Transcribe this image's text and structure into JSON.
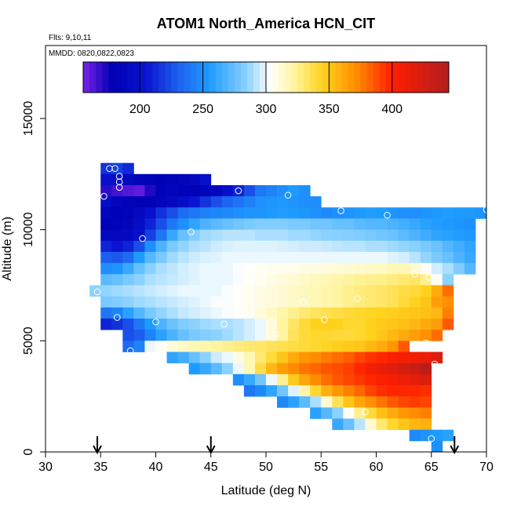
{
  "chart_data": {
    "type": "heatmap",
    "title": "ATOM1 North_America HCN_CIT",
    "flights_label": "Flts: 9,10,11",
    "date_label": "MMDD: 0820,0822,0823",
    "xlabel": "Latitude (deg N)",
    "ylabel": "Altitude (m)",
    "xlim": [
      30,
      70
    ],
    "ylim": [
      0,
      18500
    ],
    "xticks": [
      "30",
      "35",
      "40",
      "45",
      "50",
      "55",
      "60",
      "65",
      "70"
    ],
    "yticks": [
      "0",
      "5000",
      "10000",
      "15000"
    ],
    "colorbar": {
      "range": [
        155,
        445
      ],
      "ticks": [
        "200",
        "250",
        "300",
        "350",
        "400"
      ],
      "stops": [
        [
          155,
          "#7a22e8"
        ],
        [
          178,
          "#0000b4"
        ],
        [
          205,
          "#0a14d0"
        ],
        [
          232,
          "#1e64f0"
        ],
        [
          255,
          "#1e9bff"
        ],
        [
          285,
          "#8cd2ff"
        ],
        [
          303,
          "#ffffff"
        ],
        [
          322,
          "#fff5a0"
        ],
        [
          345,
          "#ffd21e"
        ],
        [
          372,
          "#ff8c00"
        ],
        [
          400,
          "#ff1e00"
        ],
        [
          445,
          "#b01e1e"
        ]
      ]
    },
    "cell_width_deg": 1.0,
    "cell_height_m": 500,
    "rows": [
      {
        "alt": 12750,
        "lat_start": 35,
        "values": [
          215,
          220,
          212
        ]
      },
      {
        "alt": 12250,
        "lat_start": 35,
        "values": [
          200,
          195,
          190,
          185,
          182,
          180,
          182,
          185,
          190,
          200
        ]
      },
      {
        "alt": 11750,
        "lat_start": 35,
        "values": [
          170,
          165,
          162,
          160,
          172,
          182,
          185,
          182,
          180,
          183,
          188,
          198,
          210,
          225,
          240,
          245,
          250,
          255,
          250
        ]
      },
      {
        "alt": 11250,
        "lat_start": 35,
        "values": [
          195,
          185,
          182,
          180,
          180,
          185,
          190,
          195,
          205,
          215,
          225,
          232,
          238,
          244,
          250,
          252,
          254,
          252,
          250,
          250
        ]
      },
      {
        "alt": 10750,
        "lat_start": 35,
        "values": [
          185,
          180,
          182,
          190,
          200,
          215,
          225,
          235,
          240,
          244,
          246,
          248,
          250,
          252,
          252,
          254,
          256,
          254,
          252,
          250,
          248,
          250,
          252,
          254,
          256,
          255,
          252,
          250,
          250,
          252,
          254,
          256,
          255,
          254,
          252
        ]
      },
      {
        "alt": 10250,
        "lat_start": 35,
        "values": [
          180,
          182,
          185,
          195,
          210,
          225,
          240,
          250,
          260,
          268,
          272,
          275,
          278,
          280,
          282,
          282,
          282,
          280,
          280,
          278,
          278,
          275,
          275,
          272,
          270,
          270,
          268,
          265,
          262,
          258,
          256,
          254,
          252,
          250
        ]
      },
      {
        "alt": 9750,
        "lat_start": 35,
        "values": [
          190,
          188,
          190,
          200,
          220,
          240,
          262,
          275,
          282,
          288,
          290,
          292,
          292,
          292,
          290,
          290,
          290,
          288,
          288,
          286,
          285,
          284,
          283,
          282,
          280,
          278,
          276,
          272,
          268,
          264,
          260,
          258,
          256,
          254
        ]
      },
      {
        "alt": 9250,
        "lat_start": 35,
        "values": [
          210,
          205,
          210,
          225,
          250,
          268,
          280,
          286,
          290,
          292,
          295,
          297,
          298,
          298,
          298,
          298,
          297,
          296,
          295,
          295,
          294,
          293,
          292,
          292,
          290,
          290,
          288,
          286,
          284,
          280,
          276,
          270,
          265,
          260
        ]
      },
      {
        "alt": 8750,
        "lat_start": 35,
        "values": [
          230,
          228,
          235,
          255,
          270,
          280,
          288,
          292,
          295,
          297,
          298,
          300,
          300,
          300,
          300,
          300,
          300,
          300,
          300,
          300,
          300,
          300,
          300,
          300,
          300,
          300,
          298,
          296,
          292,
          286,
          280,
          275,
          268,
          262
        ]
      },
      {
        "alt": 8250,
        "lat_start": 35,
        "values": [
          250,
          252,
          262,
          275,
          284,
          290,
          293,
          296,
          298,
          300,
          300,
          300,
          302,
          304,
          305,
          306,
          306,
          307,
          308,
          309,
          310,
          311,
          312,
          313,
          314,
          315,
          318,
          318,
          312,
          305,
          296,
          290,
          282,
          270
        ]
      },
      {
        "alt": 7750,
        "lat_start": 35,
        "values": [
          272,
          275,
          280,
          285,
          290,
          292,
          294,
          296,
          298,
          300,
          300,
          300,
          302,
          304,
          306,
          308,
          310,
          312,
          314,
          316,
          318,
          320,
          322,
          324,
          325,
          326,
          328,
          330,
          332,
          325,
          305,
          285
        ]
      },
      {
        "alt": 7250,
        "lat_start": 34,
        "values": [
          285,
          286,
          288,
          290,
          292,
          294,
          296,
          298,
          300,
          300,
          300,
          300,
          302,
          304,
          306,
          308,
          310,
          312,
          314,
          316,
          318,
          320,
          322,
          325,
          328,
          330,
          332,
          335,
          338,
          340,
          345,
          360,
          380
        ]
      },
      {
        "alt": 6750,
        "lat_start": 35,
        "values": [
          280,
          282,
          285,
          288,
          290,
          292,
          294,
          296,
          298,
          300,
          302,
          302,
          304,
          306,
          308,
          310,
          312,
          314,
          316,
          318,
          320,
          322,
          325,
          328,
          330,
          332,
          335,
          340,
          345,
          350,
          365,
          370
        ]
      },
      {
        "alt": 6250,
        "lat_start": 35,
        "values": [
          240,
          245,
          258,
          270,
          280,
          286,
          290,
          294,
          296,
          298,
          300,
          302,
          304,
          306,
          310,
          315,
          320,
          325,
          330,
          333,
          336,
          338,
          340,
          342,
          344,
          345,
          346,
          348,
          350,
          352,
          355,
          375
        ]
      },
      {
        "alt": 5750,
        "lat_start": 35,
        "values": [
          210,
          215,
          225,
          240,
          255,
          268,
          276,
          282,
          285,
          288,
          290,
          290,
          292,
          296,
          300,
          310,
          322,
          332,
          340,
          345,
          346,
          345,
          342,
          342,
          345,
          348,
          350,
          352,
          355,
          360,
          365,
          385
        ]
      },
      {
        "alt": 5250,
        "lat_start": 37,
        "values": [
          225,
          230,
          245,
          258,
          268,
          275,
          280,
          283,
          285,
          288,
          292,
          296,
          300,
          310,
          322,
          334,
          340,
          342,
          342,
          340,
          340,
          342,
          345,
          350,
          355,
          360,
          365,
          370,
          380
        ]
      },
      {
        "alt": 4750,
        "lat_start": 37,
        "values": [
          235,
          245,
          300,
          305,
          310,
          315,
          318,
          320,
          322,
          325,
          328,
          330,
          332,
          334,
          336,
          338,
          340,
          342,
          344,
          346,
          348,
          350,
          355,
          360,
          368,
          385
        ]
      },
      {
        "alt": 4250,
        "lat_start": 41,
        "values": [
          260,
          265,
          275,
          285,
          295,
          300,
          308,
          318,
          330,
          340,
          350,
          360,
          368,
          372,
          376,
          380,
          384,
          390,
          395,
          398,
          402,
          405,
          408,
          410,
          420
        ]
      },
      {
        "alt": 3750,
        "lat_start": 43,
        "values": [
          255,
          262,
          272,
          285,
          300,
          318,
          338,
          355,
          365,
          372,
          378,
          382,
          386,
          388,
          392,
          398,
          405,
          412,
          418,
          425,
          430,
          440
        ]
      },
      {
        "alt": 3250,
        "lat_start": 47,
        "values": [
          250,
          262,
          278,
          300,
          325,
          348,
          362,
          372,
          380,
          386,
          390,
          394,
          398,
          402,
          405,
          410,
          415,
          420
        ]
      },
      {
        "alt": 2750,
        "lat_start": 48,
        "values": [
          240,
          248,
          260,
          278,
          298,
          320,
          342,
          358,
          368,
          375,
          382,
          390,
          396,
          398,
          398,
          398,
          396
        ]
      },
      {
        "alt": 2250,
        "lat_start": 51,
        "values": [
          248,
          258,
          272,
          290,
          312,
          335,
          350,
          362,
          370,
          378,
          385,
          390,
          392,
          390
        ]
      },
      {
        "alt": 1750,
        "lat_start": 54,
        "values": [
          258,
          270,
          285,
          305,
          325,
          340,
          352,
          360,
          368,
          372,
          375
        ]
      },
      {
        "alt": 1250,
        "lat_start": 56,
        "values": [
          262,
          275,
          292,
          312,
          330,
          342,
          350,
          355,
          358
        ]
      },
      {
        "alt": 750,
        "lat_start": 63,
        "values": [
          248,
          252,
          255,
          258
        ]
      },
      {
        "alt": 250,
        "lat_start": 65,
        "values": [
          250
        ]
      }
    ],
    "observations": [
      {
        "lat": 35.8,
        "alt": 12750
      },
      {
        "lat": 36.3,
        "alt": 12750
      },
      {
        "lat": 36.7,
        "alt": 12400
      },
      {
        "lat": 36.7,
        "alt": 12150
      },
      {
        "lat": 36.7,
        "alt": 11900
      },
      {
        "lat": 35.3,
        "alt": 11500
      },
      {
        "lat": 47.5,
        "alt": 11750
      },
      {
        "lat": 52.0,
        "alt": 11550
      },
      {
        "lat": 56.8,
        "alt": 10850
      },
      {
        "lat": 61.0,
        "alt": 10650
      },
      {
        "lat": 70.0,
        "alt": 10900
      },
      {
        "lat": 43.2,
        "alt": 9900
      },
      {
        "lat": 38.8,
        "alt": 9600
      },
      {
        "lat": 64.8,
        "alt": 7850
      },
      {
        "lat": 34.7,
        "alt": 7200
      },
      {
        "lat": 53.4,
        "alt": 6750
      },
      {
        "lat": 58.3,
        "alt": 6900
      },
      {
        "lat": 63.5,
        "alt": 8000
      },
      {
        "lat": 36.5,
        "alt": 6050
      },
      {
        "lat": 40.0,
        "alt": 5850
      },
      {
        "lat": 46.2,
        "alt": 5750
      },
      {
        "lat": 55.3,
        "alt": 5950
      },
      {
        "lat": 50.9,
        "alt": 5300
      },
      {
        "lat": 64.5,
        "alt": 4900
      },
      {
        "lat": 37.7,
        "alt": 4550
      },
      {
        "lat": 65.3,
        "alt": 3950
      },
      {
        "lat": 59.0,
        "alt": 1800
      },
      {
        "lat": 65.0,
        "alt": 600
      }
    ],
    "arrows_lat": [
      34.7,
      45.0,
      67.1
    ]
  }
}
